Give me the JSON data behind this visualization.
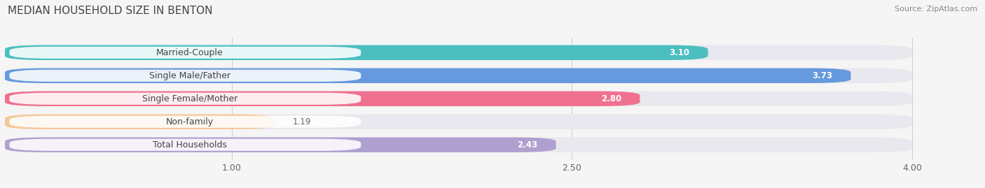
{
  "title": "MEDIAN HOUSEHOLD SIZE IN BENTON",
  "source": "Source: ZipAtlas.com",
  "categories": [
    "Married-Couple",
    "Single Male/Father",
    "Single Female/Mother",
    "Non-family",
    "Total Households"
  ],
  "values": [
    3.1,
    3.73,
    2.8,
    1.19,
    2.43
  ],
  "bar_colors": [
    "#4bbfbf",
    "#6699dd",
    "#f07090",
    "#f5c89a",
    "#b0a0d0"
  ],
  "bg_color": "#e8e8ee",
  "xlim_min": 0.0,
  "xlim_max": 4.3,
  "xdata_max": 4.0,
  "xticks": [
    1.0,
    2.5,
    4.0
  ],
  "value_labels": [
    "3.10",
    "3.73",
    "2.80",
    "1.19",
    "2.43"
  ],
  "title_fontsize": 11,
  "label_fontsize": 9,
  "value_fontsize": 8.5,
  "tick_fontsize": 9,
  "bar_height": 0.65,
  "background_color": "#f5f5f5",
  "pill_color": "#ffffff",
  "label_color": "#444444",
  "value_color_inside": "#ffffff",
  "value_color_outside": "#666666"
}
